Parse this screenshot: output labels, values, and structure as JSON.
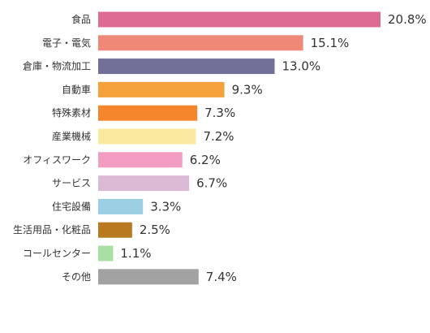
{
  "chart_data": {
    "type": "bar",
    "orientation": "horizontal",
    "categories": [
      "食品",
      "電子・電気",
      "倉庫・物流加工",
      "自動車",
      "特殊素材",
      "産業機械",
      "オフィスワーク",
      "サービス",
      "住宅設備",
      "生活用品・化粧品",
      "コールセンター",
      "その他"
    ],
    "values": [
      20.8,
      15.1,
      13.0,
      9.3,
      7.3,
      7.2,
      6.2,
      6.7,
      3.3,
      2.5,
      1.1,
      7.4
    ],
    "value_labels": [
      "20.8%",
      "15.1%",
      "13.0%",
      "9.3%",
      "7.3%",
      "7.2%",
      "6.2%",
      "6.7%",
      "3.3%",
      "2.5%",
      "1.1%",
      "7.4%"
    ],
    "colors": [
      "#de6b93",
      "#f08878",
      "#707098",
      "#f6a23c",
      "#f6862c",
      "#fce9a0",
      "#f29cc2",
      "#dcb9d4",
      "#9bcfe3",
      "#b97a1f",
      "#a8e0a3",
      "#a2a2a2"
    ],
    "xlim": [
      0,
      20.8
    ],
    "grid": false,
    "legend": "none"
  }
}
